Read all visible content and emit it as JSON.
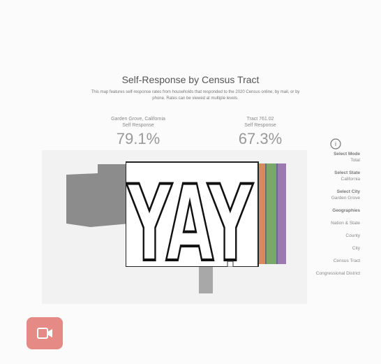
{
  "header": {
    "title": "Self-Response by Census Tract",
    "description": "This map features self-response rates from households that responded to the 2020 Census online, by mail, or by phone. Rates can be viewed at multiple levels."
  },
  "stats": [
    {
      "place": "Garden Grove, California",
      "label": "Self Response",
      "value": "79.1%"
    },
    {
      "place": "Tract 761.02",
      "label": "Self Response",
      "value": "67.3%"
    }
  ],
  "sidebar": {
    "mode_label": "Select Mode",
    "mode": "Total",
    "state_label": "Select State",
    "state": "California",
    "city_label": "Select City",
    "city": "Garden Grove",
    "geo_label": "Geographies",
    "geographies": [
      "Nation & State",
      "County",
      "City",
      "Census Tract",
      "Congressional District"
    ]
  },
  "sticker": {
    "text": "YAY"
  }
}
